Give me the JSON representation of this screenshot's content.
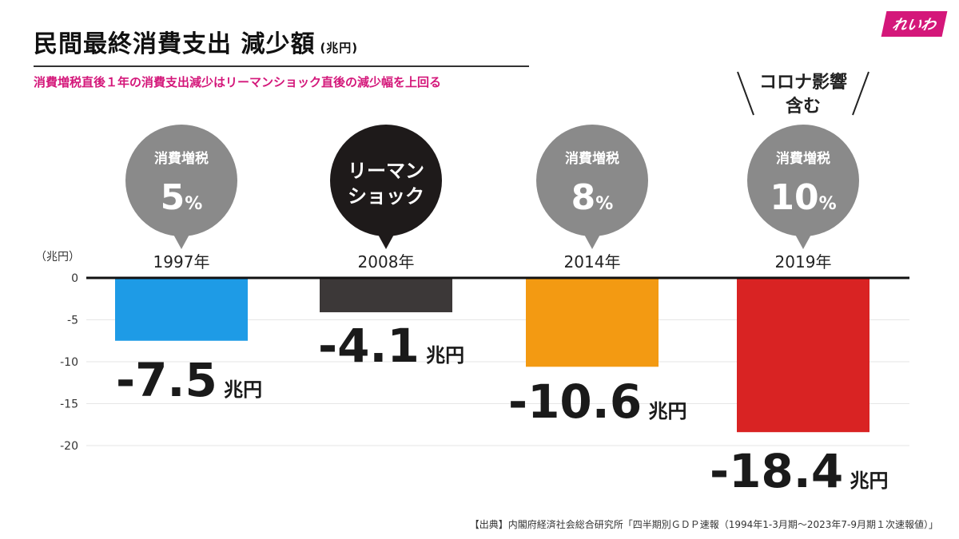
{
  "header": {
    "title": "民間最終消費支出 減少額",
    "title_unit": "(兆円)",
    "subtitle": "消費増税直後１年の消費支出減少はリーマンショック直後の減少幅を上回る",
    "subtitle_color": "#d4177a",
    "logo_text": "れいわ"
  },
  "annotation": {
    "line1": "コロナ影響",
    "line2": "含む"
  },
  "bubbles": [
    {
      "line1": "消費増税",
      "line2": "5",
      "suffix": "%",
      "color": "#8a8a8a"
    },
    {
      "line1": "リーマン",
      "line2": "ショック",
      "suffix": "",
      "color": "#1e1a1a"
    },
    {
      "line1": "消費増税",
      "line2": "8",
      "suffix": "%",
      "color": "#8a8a8a"
    },
    {
      "line1": "消費増税",
      "line2": "10",
      "suffix": "%",
      "color": "#8a8a8a"
    }
  ],
  "chart_data": {
    "type": "bar",
    "title": "民間最終消費支出 減少額",
    "ylabel": "（兆円）",
    "categories": [
      "1997年",
      "2008年",
      "2014年",
      "2019年"
    ],
    "values": [
      -7.5,
      -4.1,
      -10.6,
      -18.4
    ],
    "value_labels": [
      "-7.5",
      "-4.1",
      "-10.6",
      "-18.4"
    ],
    "value_unit": "兆円",
    "colors": [
      "#1e9be6",
      "#3c3838",
      "#f39a12",
      "#d92323"
    ],
    "yticks": [
      "0",
      "-5",
      "-10",
      "-15",
      "-20"
    ],
    "ytick_values": [
      0,
      -5,
      -10,
      -15,
      -20
    ],
    "ylim": [
      -20,
      0
    ],
    "grid": true
  },
  "source": "【出典】内閣府経済社会総合研究所「四半期別ＧＤＰ速報（1994年1-3月期〜2023年7-9月期１次速報値）」"
}
